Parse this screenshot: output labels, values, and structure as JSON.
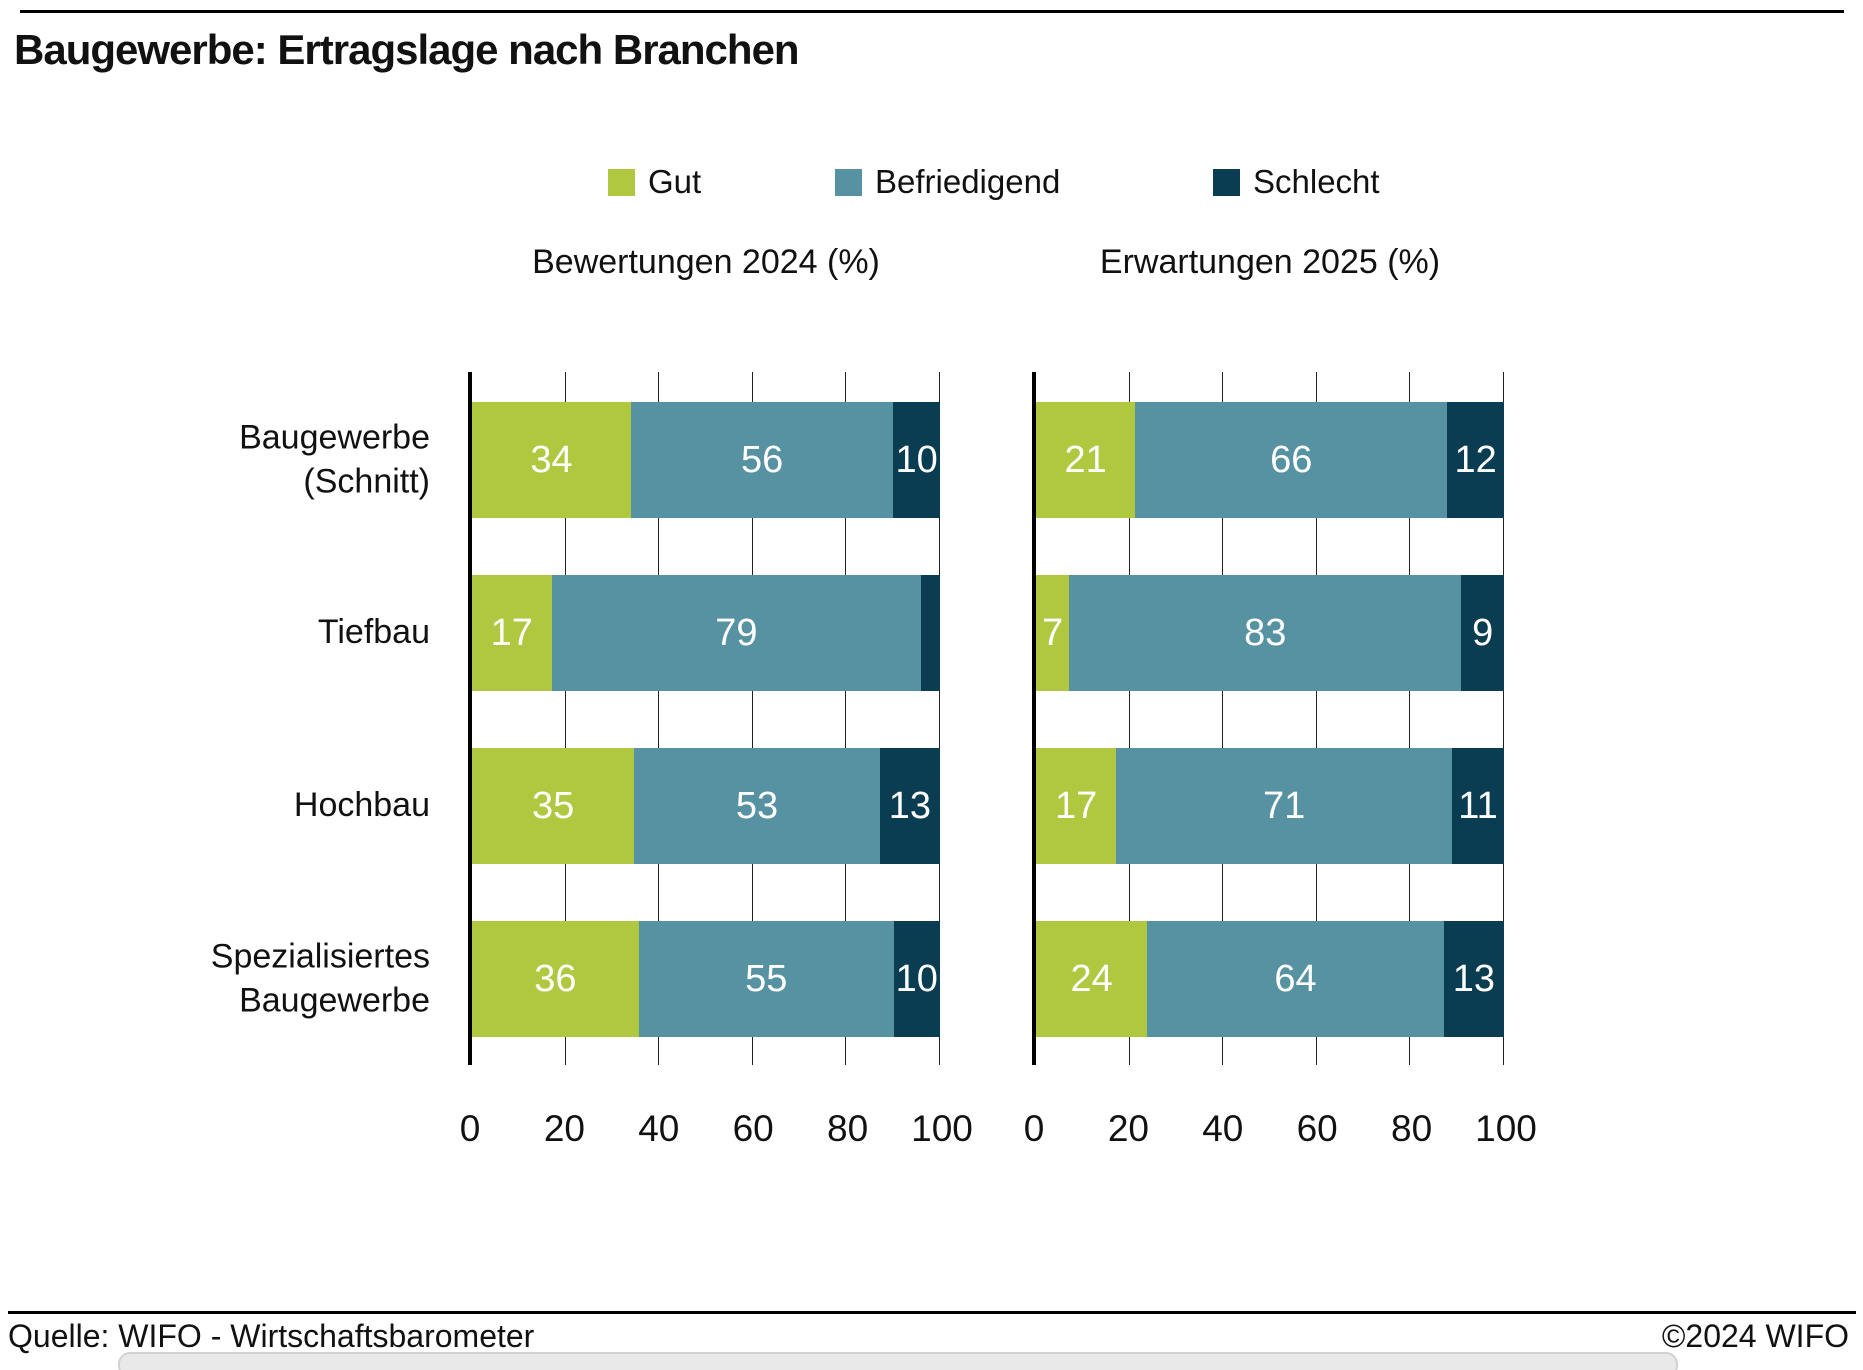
{
  "title": "Baugewerbe: Ertragslage nach Branchen",
  "legend": [
    {
      "label": "Gut",
      "color": "#b0c840"
    },
    {
      "label": "Befriedigend",
      "color": "#5792a3"
    },
    {
      "label": "Schlecht",
      "color": "#0a3c52"
    }
  ],
  "categories_display": [
    "Baugewerbe\n(Schnitt)",
    "Tiefbau",
    "Hochbau",
    "Spezialisiertes\nBaugewerbe"
  ],
  "footer": {
    "source": "Quelle: WIFO - Wirtschaftsbarometer",
    "copyright": "©2024 WIFO"
  },
  "chart_data": {
    "type": "bar",
    "orientation": "horizontal-stacked",
    "categories": [
      "Baugewerbe (Schnitt)",
      "Tiefbau",
      "Hochbau",
      "Spezialisiertes Baugewerbe"
    ],
    "panels": [
      {
        "title": "Bewertungen 2024 (%)",
        "series": [
          {
            "name": "Gut",
            "values": [
              34,
              17,
              35,
              36
            ]
          },
          {
            "name": "Befriedigend",
            "values": [
              56,
              79,
              53,
              55
            ]
          },
          {
            "name": "Schlecht",
            "values": [
              10,
              4,
              13,
              10
            ]
          }
        ]
      },
      {
        "title": "Erwartungen 2025 (%)",
        "series": [
          {
            "name": "Gut",
            "values": [
              21,
              7,
              17,
              24
            ]
          },
          {
            "name": "Befriedigend",
            "values": [
              66,
              83,
              71,
              64
            ]
          },
          {
            "name": "Schlecht",
            "values": [
              12,
              9,
              11,
              13
            ]
          }
        ]
      }
    ],
    "xlim": [
      0,
      100
    ],
    "xticks": [
      0,
      20,
      40,
      60,
      80,
      100
    ],
    "grid": true,
    "legend_position": "top",
    "min_label_value": 5
  }
}
